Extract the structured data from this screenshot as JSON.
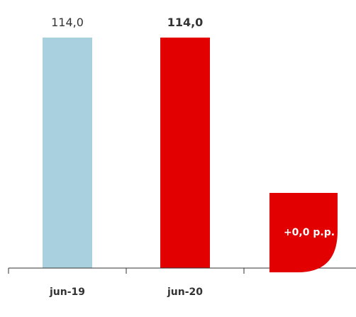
{
  "chart_data": {
    "type": "bar",
    "categories": [
      "jun-19",
      "jun-20"
    ],
    "values": [
      114.0,
      114.0
    ],
    "value_labels": [
      "114,0",
      "114,0"
    ],
    "bar_colors": [
      "#a8d0de",
      "#e20000"
    ],
    "ylim": [
      0,
      114.0
    ],
    "grid": false,
    "title": "",
    "xlabel": "",
    "ylabel": "",
    "badge": {
      "text": "+0,0 p.p.",
      "color": "#e20000"
    }
  }
}
